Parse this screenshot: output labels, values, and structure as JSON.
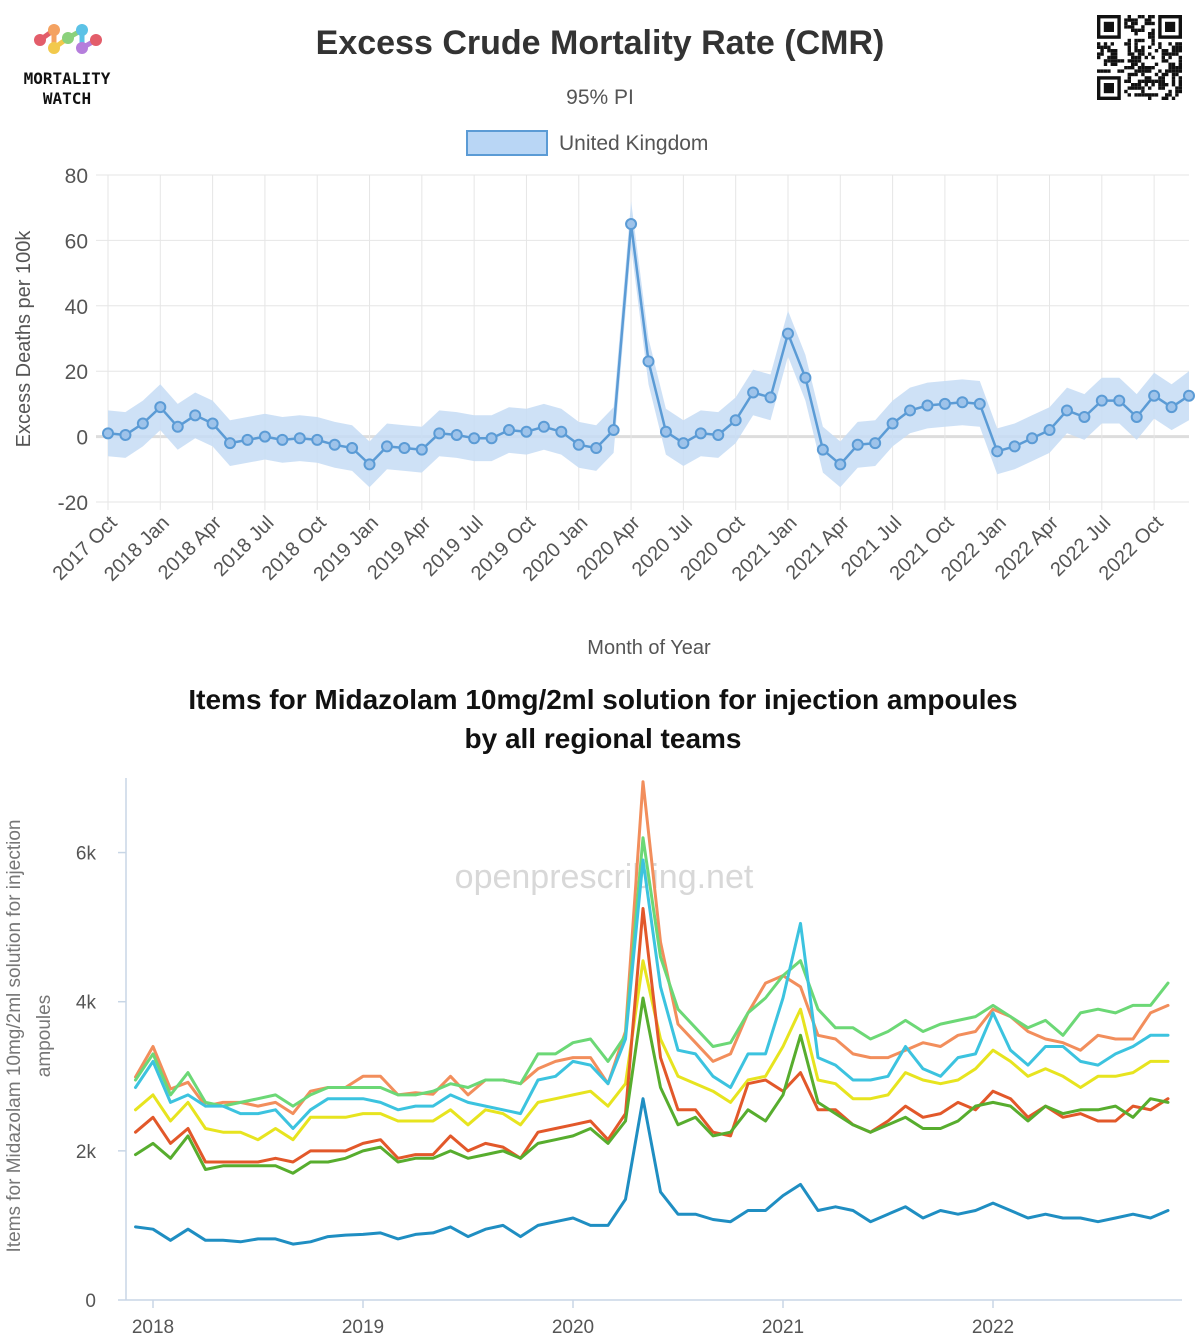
{
  "logo": {
    "line1": "MORTALITY",
    "line2": "WATCH",
    "dot_colors": [
      "#e35d6a",
      "#f4a261",
      "#f2c94c",
      "#8bd17c",
      "#5cc2e6",
      "#b57edc"
    ]
  },
  "qr_icon": "qr-code-icon",
  "chart_data": [
    {
      "type": "line",
      "title": "Excess Crude Mortality Rate (CMR)",
      "subtitle": "95% PI",
      "xlabel": "Month of Year",
      "ylabel": "Excess Deaths per 100k",
      "ylim": [
        -20,
        80
      ],
      "y_ticks": [
        "80",
        "60",
        "40",
        "20",
        "0",
        "-20"
      ],
      "x_tick_labels": [
        "2017 Oct",
        "2018 Jan",
        "2018 Apr",
        "2018 Jul",
        "2018 Oct",
        "2019 Jan",
        "2019 Apr",
        "2019 Jul",
        "2019 Oct",
        "2020 Jan",
        "2020 Apr",
        "2020 Jul",
        "2020 Oct",
        "2021 Jan",
        "2021 Apr",
        "2021 Jul",
        "2021 Oct",
        "2022 Jan",
        "2022 Apr",
        "2022 Jul",
        "2022 Oct"
      ],
      "start_month": "2017-10",
      "grid": true,
      "legend_position": "top",
      "series": [
        {
          "name": "United Kingdom",
          "color": "#5b9bd5",
          "band_color": "#c6dcf4",
          "values": [
            1,
            0.5,
            4,
            9,
            3,
            6.5,
            4,
            -2,
            -1,
            0,
            -1,
            -0.5,
            -1,
            -2.5,
            -3.5,
            -8.5,
            -3,
            -3.5,
            -4,
            1,
            0.5,
            -0.5,
            -0.5,
            2,
            1.5,
            3,
            1.5,
            -2.5,
            -3.5,
            2,
            65,
            23,
            1.5,
            -2,
            1,
            0.5,
            5,
            13.5,
            12,
            31.5,
            18,
            -4,
            -8.5,
            -2.5,
            -2,
            4,
            8,
            9.5,
            10,
            10.5,
            10,
            -4.5,
            -3,
            -0.5,
            2,
            8,
            6,
            11,
            11,
            6,
            12.5,
            9,
            12.5
          ],
          "upper": [
            8,
            7.5,
            11,
            16,
            10,
            13.5,
            11,
            5,
            6,
            7,
            6,
            6.5,
            6,
            4.5,
            3.5,
            -1.5,
            4,
            3.5,
            3,
            8,
            7.5,
            6.5,
            6.5,
            9,
            8.5,
            10,
            8.5,
            4.5,
            3.5,
            9,
            72,
            30,
            8.5,
            5,
            8,
            7.5,
            12,
            20.5,
            19,
            38.5,
            25,
            3,
            -1.5,
            4.5,
            5,
            11,
            15,
            16.5,
            17,
            17.5,
            17,
            2.5,
            4,
            6.5,
            9,
            15,
            13,
            18,
            18,
            13,
            19.5,
            16,
            20
          ],
          "lower": [
            -6,
            -6.5,
            -3,
            2,
            -4,
            -0.5,
            -3,
            -9,
            -8,
            -7,
            -8,
            -7.5,
            -8,
            -9.5,
            -10.5,
            -15.5,
            -10,
            -10.5,
            -11,
            -6,
            -6.5,
            -7.5,
            -7.5,
            -5,
            -5.5,
            -4,
            -5.5,
            -9.5,
            -10.5,
            -5,
            58,
            16,
            -5.5,
            -9,
            -6,
            -6.5,
            -2,
            6.5,
            5,
            24.5,
            11,
            -11,
            -15.5,
            -9.5,
            -9,
            -3,
            1,
            2.5,
            3,
            3.5,
            3,
            -11.5,
            -10,
            -7.5,
            -5,
            1,
            -1,
            4,
            4,
            -1,
            5.5,
            2,
            5
          ]
        }
      ]
    },
    {
      "type": "line",
      "title_line1": "Items for Midazolam 10mg/2ml solution for injection ampoules",
      "title_line2": "by all regional teams",
      "ylabel_line1": "Items for Midazolam 10mg/2ml solution for injection",
      "ylabel_line2": "ampoules",
      "watermark": "openprescribing.net",
      "ylim": [
        0,
        7000
      ],
      "y_ticks": [
        "6k",
        "4k",
        "2k",
        "0"
      ],
      "x_tick_labels": [
        "2018",
        "2019",
        "2020",
        "2021",
        "2022"
      ],
      "start_month": "2017-12",
      "series": [
        {
          "color": "#f28e5c",
          "values": [
            2990,
            3400,
            2830,
            2920,
            2600,
            2650,
            2650,
            2600,
            2650,
            2500,
            2800,
            2850,
            2850,
            3000,
            3000,
            2750,
            2780,
            2760,
            3000,
            2750,
            2950,
            2950,
            2900,
            3100,
            3200,
            3250,
            3250,
            2900,
            3600,
            6950,
            4800,
            3700,
            3450,
            3200,
            3300,
            3850,
            4250,
            4350,
            4200,
            3550,
            3500,
            3300,
            3250,
            3250,
            3350,
            3450,
            3400,
            3550,
            3600,
            3900,
            3800,
            3600,
            3500,
            3450,
            3350,
            3550,
            3500,
            3500,
            3850,
            3950
          ]
        },
        {
          "color": "#6cd876",
          "values": [
            2950,
            3300,
            2750,
            3050,
            2650,
            2600,
            2650,
            2700,
            2750,
            2600,
            2750,
            2850,
            2850,
            2850,
            2850,
            2750,
            2750,
            2800,
            2900,
            2850,
            2950,
            2950,
            2900,
            3300,
            3300,
            3450,
            3500,
            3200,
            3550,
            6200,
            4600,
            3900,
            3650,
            3400,
            3450,
            3850,
            4050,
            4350,
            4550,
            3900,
            3650,
            3650,
            3500,
            3600,
            3750,
            3600,
            3700,
            3750,
            3800,
            3950,
            3800,
            3650,
            3750,
            3550,
            3850,
            3900,
            3850,
            3950,
            3950,
            4250
          ]
        },
        {
          "color": "#3cc3df",
          "values": [
            2850,
            3200,
            2650,
            2750,
            2600,
            2600,
            2500,
            2500,
            2550,
            2300,
            2550,
            2700,
            2700,
            2700,
            2650,
            2550,
            2600,
            2600,
            2750,
            2650,
            2600,
            2550,
            2500,
            2950,
            3000,
            3200,
            3150,
            2900,
            3500,
            5900,
            4200,
            3350,
            3300,
            3000,
            2850,
            3300,
            3300,
            4050,
            5050,
            3250,
            3150,
            2950,
            2950,
            3000,
            3400,
            3100,
            3000,
            3250,
            3300,
            3850,
            3350,
            3150,
            3400,
            3400,
            3200,
            3150,
            3300,
            3400,
            3550,
            3550
          ]
        },
        {
          "color": "#e7e41f",
          "values": [
            2550,
            2750,
            2400,
            2650,
            2300,
            2250,
            2250,
            2150,
            2300,
            2150,
            2450,
            2450,
            2450,
            2500,
            2500,
            2400,
            2400,
            2400,
            2550,
            2350,
            2550,
            2500,
            2350,
            2650,
            2700,
            2750,
            2800,
            2600,
            2900,
            4550,
            3500,
            3000,
            2900,
            2800,
            2650,
            2950,
            3000,
            3400,
            3900,
            2950,
            2900,
            2700,
            2700,
            2750,
            3050,
            2950,
            2900,
            2950,
            3100,
            3350,
            3200,
            3000,
            3100,
            3000,
            2850,
            3000,
            3000,
            3050,
            3200,
            3200
          ]
        },
        {
          "color": "#e2582a",
          "values": [
            2250,
            2450,
            2100,
            2300,
            1850,
            1850,
            1850,
            1850,
            1900,
            1850,
            2000,
            2000,
            2000,
            2100,
            2150,
            1900,
            1950,
            1950,
            2200,
            2000,
            2100,
            2050,
            1900,
            2250,
            2300,
            2350,
            2400,
            2150,
            2500,
            5250,
            3250,
            2550,
            2550,
            2250,
            2200,
            2900,
            2950,
            2800,
            3050,
            2550,
            2550,
            2350,
            2250,
            2400,
            2600,
            2450,
            2500,
            2650,
            2550,
            2800,
            2700,
            2450,
            2600,
            2450,
            2500,
            2400,
            2400,
            2600,
            2550,
            2700
          ]
        },
        {
          "color": "#57ad2e",
          "values": [
            1950,
            2100,
            1900,
            2200,
            1750,
            1800,
            1800,
            1800,
            1800,
            1700,
            1850,
            1850,
            1900,
            2000,
            2050,
            1850,
            1900,
            1900,
            2000,
            1900,
            1950,
            2000,
            1900,
            2100,
            2150,
            2200,
            2300,
            2100,
            2400,
            4050,
            2850,
            2350,
            2450,
            2200,
            2250,
            2550,
            2400,
            2750,
            3550,
            2650,
            2500,
            2350,
            2250,
            2350,
            2450,
            2300,
            2300,
            2400,
            2600,
            2650,
            2600,
            2400,
            2600,
            2500,
            2550,
            2550,
            2600,
            2450,
            2700,
            2650
          ]
        },
        {
          "color": "#1f8ec2",
          "values": [
            980,
            950,
            800,
            950,
            800,
            800,
            780,
            820,
            820,
            750,
            780,
            850,
            870,
            880,
            900,
            820,
            880,
            900,
            980,
            850,
            950,
            1000,
            850,
            1000,
            1050,
            1100,
            1000,
            1000,
            1350,
            2700,
            1450,
            1150,
            1150,
            1080,
            1050,
            1200,
            1200,
            1400,
            1550,
            1200,
            1250,
            1200,
            1050,
            1150,
            1250,
            1100,
            1200,
            1150,
            1200,
            1300,
            1200,
            1100,
            1150,
            1100,
            1100,
            1050,
            1100,
            1150,
            1100,
            1200
          ]
        }
      ]
    }
  ]
}
